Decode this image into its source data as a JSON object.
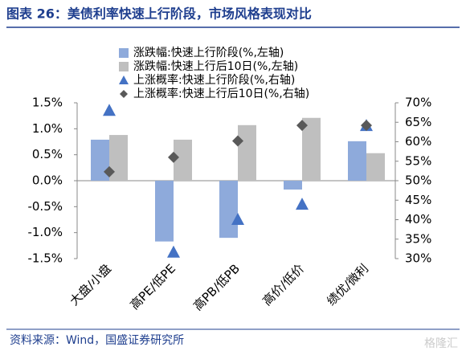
{
  "chart_data": {
    "type": "bar",
    "title": "图表 26：美债利率快速上行阶段，市场风格表现对比",
    "source": "资料来源：Wind，国盛证券研究所",
    "watermark": "格隆汇",
    "categories": [
      "大盘/小盘",
      "高PE/低PE",
      "高PB/低PB",
      "高价/低价",
      "绩优/微利"
    ],
    "series": [
      {
        "name": "涨跌幅:快速上行阶段(%,左轴)",
        "color": "#8eaadb",
        "kind": "bar",
        "values": [
          0.79,
          -1.17,
          -1.1,
          -0.17,
          0.76
        ]
      },
      {
        "name": "涨跌幅:快速上行后10日(%,左轴)",
        "color": "#bfbfbf",
        "kind": "bar",
        "values": [
          0.88,
          0.79,
          1.07,
          1.21,
          0.53
        ]
      },
      {
        "name": "上涨概率:快速上行阶段(%,右轴)",
        "color": "#4472c4",
        "kind": "triangle",
        "axis": "y2",
        "values": [
          68.1,
          31.7,
          40.1,
          44.0,
          64.2
        ]
      },
      {
        "name": "上涨概率:快速上行后10日(%,右轴)",
        "color": "#595959",
        "kind": "diamond",
        "axis": "y2",
        "values": [
          52.3,
          56.0,
          60.2,
          64.2,
          64.2
        ]
      }
    ],
    "ylim": [
      -1.5,
      1.5
    ],
    "yticks": [
      {
        "value": -1.5,
        "label": "-1.5%"
      },
      {
        "value": -1.0,
        "label": "-1.0%"
      },
      {
        "value": -0.5,
        "label": "-0.5%"
      },
      {
        "value": 0,
        "label": "0.0%"
      },
      {
        "value": 0.5,
        "label": "0.5%"
      },
      {
        "value": 1.0,
        "label": "1.0%"
      },
      {
        "value": 1.5,
        "label": "1.5%"
      }
    ],
    "y2lim": [
      30,
      70
    ],
    "y2ticks": [
      {
        "value": 30,
        "label": "30%"
      },
      {
        "value": 35,
        "label": "35%"
      },
      {
        "value": 40,
        "label": "40%"
      },
      {
        "value": 45,
        "label": "45%"
      },
      {
        "value": 50,
        "label": "50%"
      },
      {
        "value": 55,
        "label": "55%"
      },
      {
        "value": 60,
        "label": "60%"
      },
      {
        "value": 65,
        "label": "65%"
      },
      {
        "value": 70,
        "label": "70%"
      }
    ],
    "grid": false
  }
}
